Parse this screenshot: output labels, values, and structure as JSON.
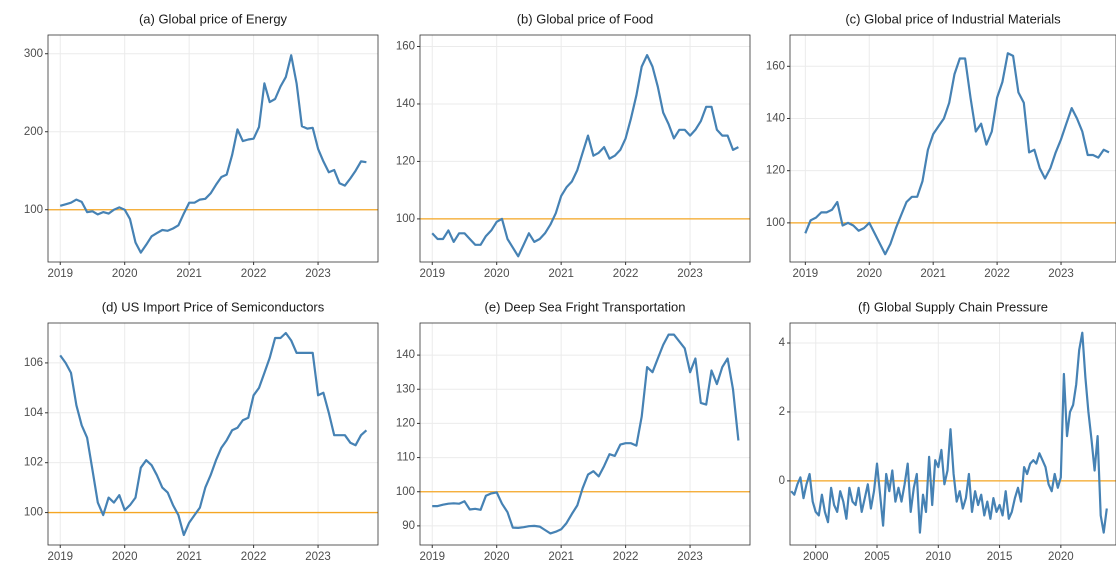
{
  "chart_data": [
    {
      "type": "line",
      "title": "(a) Global price of Energy",
      "x": [
        2019,
        2019.083,
        2019.167,
        2019.25,
        2019.333,
        2019.417,
        2019.5,
        2019.583,
        2019.667,
        2019.75,
        2019.833,
        2019.917,
        2020,
        2020.083,
        2020.167,
        2020.25,
        2020.333,
        2020.417,
        2020.5,
        2020.583,
        2020.667,
        2020.75,
        2020.833,
        2020.917,
        2021,
        2021.083,
        2021.167,
        2021.25,
        2021.333,
        2021.417,
        2021.5,
        2021.583,
        2021.667,
        2021.75,
        2021.833,
        2021.917,
        2022,
        2022.083,
        2022.167,
        2022.25,
        2022.333,
        2022.417,
        2022.5,
        2022.583,
        2022.667,
        2022.75,
        2022.833,
        2022.917,
        2023,
        2023.083,
        2023.167,
        2023.25,
        2023.333,
        2023.417,
        2023.5,
        2023.583,
        2023.667,
        2023.75
      ],
      "values": [
        105,
        107,
        109,
        113,
        110,
        97,
        98,
        94,
        97,
        95,
        100,
        103,
        100,
        88,
        58,
        45,
        55,
        66,
        70,
        74,
        73,
        76,
        80,
        95,
        109,
        109,
        113,
        114,
        121,
        132,
        142,
        145,
        170,
        203,
        188,
        190,
        191,
        206,
        262,
        238,
        242,
        258,
        270,
        298,
        262,
        207,
        204,
        205,
        178,
        162,
        148,
        151,
        134,
        131,
        140,
        150,
        162,
        161
      ],
      "color": "#4682b4",
      "hline": 100,
      "hline_color": "#f5a623",
      "xlim": [
        2018.81,
        2023.93
      ],
      "xticks": [
        2019,
        2020,
        2021,
        2022,
        2023
      ],
      "ylim": [
        33,
        324
      ],
      "yticks": [
        100,
        200,
        300
      ],
      "grid": true
    },
    {
      "type": "line",
      "title": "(b) Global price of Food",
      "x": [
        2019,
        2019.083,
        2019.167,
        2019.25,
        2019.333,
        2019.417,
        2019.5,
        2019.583,
        2019.667,
        2019.75,
        2019.833,
        2019.917,
        2020,
        2020.083,
        2020.167,
        2020.25,
        2020.333,
        2020.417,
        2020.5,
        2020.583,
        2020.667,
        2020.75,
        2020.833,
        2020.917,
        2021,
        2021.083,
        2021.167,
        2021.25,
        2021.333,
        2021.417,
        2021.5,
        2021.583,
        2021.667,
        2021.75,
        2021.833,
        2021.917,
        2022,
        2022.083,
        2022.167,
        2022.25,
        2022.333,
        2022.417,
        2022.5,
        2022.583,
        2022.667,
        2022.75,
        2022.833,
        2022.917,
        2023,
        2023.083,
        2023.167,
        2023.25,
        2023.333,
        2023.417,
        2023.5,
        2023.583,
        2023.667,
        2023.75
      ],
      "values": [
        95,
        93,
        93,
        96,
        92,
        95,
        95,
        93,
        91,
        91,
        94,
        96,
        99,
        100,
        93,
        90,
        87,
        91,
        95,
        92,
        93,
        95,
        98,
        102,
        108,
        111,
        113,
        117,
        123,
        129,
        122,
        123,
        125,
        121,
        122,
        124,
        128,
        135,
        143,
        153,
        157,
        153,
        146,
        137,
        133,
        128,
        131,
        131,
        129,
        131,
        134,
        139,
        139,
        131,
        129,
        129,
        124,
        125
      ],
      "color": "#4682b4",
      "hline": 100,
      "hline_color": "#f5a623",
      "xlim": [
        2018.81,
        2023.93
      ],
      "xticks": [
        2019,
        2020,
        2021,
        2022,
        2023
      ],
      "ylim": [
        85,
        164
      ],
      "yticks": [
        100,
        120,
        140,
        160
      ],
      "grid": true
    },
    {
      "type": "line",
      "title": "(c) Global price of Industrial Materials",
      "x": [
        2019,
        2019.083,
        2019.167,
        2019.25,
        2019.333,
        2019.417,
        2019.5,
        2019.583,
        2019.667,
        2019.75,
        2019.833,
        2019.917,
        2020,
        2020.083,
        2020.167,
        2020.25,
        2020.333,
        2020.417,
        2020.5,
        2020.583,
        2020.667,
        2020.75,
        2020.833,
        2020.917,
        2021,
        2021.083,
        2021.167,
        2021.25,
        2021.333,
        2021.417,
        2021.5,
        2021.583,
        2021.667,
        2021.75,
        2021.833,
        2021.917,
        2022,
        2022.083,
        2022.167,
        2022.25,
        2022.333,
        2022.417,
        2022.5,
        2022.583,
        2022.667,
        2022.75,
        2022.833,
        2022.917,
        2023,
        2023.083,
        2023.167,
        2023.25,
        2023.333,
        2023.417,
        2023.5,
        2023.583,
        2023.667,
        2023.75
      ],
      "values": [
        96,
        101,
        102,
        104,
        104,
        105,
        108,
        99,
        100,
        99,
        97,
        98,
        100,
        96,
        92,
        88,
        92,
        98,
        103,
        108,
        110,
        110,
        116,
        128,
        134,
        137,
        140,
        146,
        157,
        163,
        163,
        148,
        135,
        138,
        130,
        135,
        148,
        154,
        165,
        164,
        150,
        146,
        127,
        128,
        121,
        117,
        121,
        127,
        132,
        138,
        144,
        140,
        135,
        126,
        126,
        125,
        128,
        127
      ],
      "color": "#4682b4",
      "hline": 100,
      "hline_color": "#f5a623",
      "xlim": [
        2018.76,
        2023.86
      ],
      "xticks": [
        2019,
        2020,
        2021,
        2022,
        2023
      ],
      "ylim": [
        85,
        172
      ],
      "yticks": [
        100,
        120,
        140,
        160
      ],
      "grid": true
    },
    {
      "type": "line",
      "title": "(d) US Import Price of Semiconductors",
      "x": [
        2019,
        2019.083,
        2019.167,
        2019.25,
        2019.333,
        2019.417,
        2019.5,
        2019.583,
        2019.667,
        2019.75,
        2019.833,
        2019.917,
        2020,
        2020.083,
        2020.167,
        2020.25,
        2020.333,
        2020.417,
        2020.5,
        2020.583,
        2020.667,
        2020.75,
        2020.833,
        2020.917,
        2021,
        2021.083,
        2021.167,
        2021.25,
        2021.333,
        2021.417,
        2021.5,
        2021.583,
        2021.667,
        2021.75,
        2021.833,
        2021.917,
        2022,
        2022.083,
        2022.167,
        2022.25,
        2022.333,
        2022.417,
        2022.5,
        2022.583,
        2022.667,
        2022.75,
        2022.833,
        2022.917,
        2023,
        2023.083,
        2023.167,
        2023.25,
        2023.333,
        2023.417,
        2023.5,
        2023.583,
        2023.667,
        2023.75
      ],
      "values": [
        106.3,
        106.0,
        105.6,
        104.3,
        103.5,
        103.0,
        101.7,
        100.4,
        99.9,
        100.6,
        100.4,
        100.7,
        100.1,
        100.3,
        100.6,
        101.8,
        102.1,
        101.9,
        101.5,
        101.0,
        100.8,
        100.3,
        99.9,
        99.1,
        99.6,
        99.9,
        100.2,
        101.0,
        101.5,
        102.1,
        102.6,
        102.9,
        103.3,
        103.4,
        103.7,
        103.8,
        104.7,
        105.0,
        105.6,
        106.2,
        107.0,
        107.0,
        107.2,
        106.9,
        106.4,
        106.4,
        106.4,
        106.4,
        104.7,
        104.8,
        104.0,
        103.1,
        103.1,
        103.1,
        102.8,
        102.7,
        103.1,
        103.3
      ],
      "color": "#4682b4",
      "hline": 100,
      "hline_color": "#f5a623",
      "xlim": [
        2018.81,
        2023.93
      ],
      "xticks": [
        2019,
        2020,
        2021,
        2022,
        2023
      ],
      "ylim": [
        98.7,
        107.6
      ],
      "yticks": [
        100,
        102,
        104,
        106
      ],
      "grid": true
    },
    {
      "type": "line",
      "title": "(e) Deep Sea Fright Transportation",
      "x": [
        2019,
        2019.083,
        2019.167,
        2019.25,
        2019.333,
        2019.417,
        2019.5,
        2019.583,
        2019.667,
        2019.75,
        2019.833,
        2019.917,
        2020,
        2020.083,
        2020.167,
        2020.25,
        2020.333,
        2020.417,
        2020.5,
        2020.583,
        2020.667,
        2020.75,
        2020.833,
        2020.917,
        2021,
        2021.083,
        2021.167,
        2021.25,
        2021.333,
        2021.417,
        2021.5,
        2021.583,
        2021.667,
        2021.75,
        2021.833,
        2021.917,
        2022,
        2022.083,
        2022.167,
        2022.25,
        2022.333,
        2022.417,
        2022.5,
        2022.583,
        2022.667,
        2022.75,
        2022.833,
        2022.917,
        2023,
        2023.083,
        2023.167,
        2023.25,
        2023.333,
        2023.417,
        2023.5,
        2023.583,
        2023.667,
        2023.75
      ],
      "values": [
        95.8,
        95.8,
        96.2,
        96.5,
        96.6,
        96.5,
        97.2,
        94.8,
        95.0,
        94.7,
        98.8,
        99.5,
        99.8,
        96.5,
        94.0,
        89.5,
        89.4,
        89.6,
        89.9,
        90.0,
        89.8,
        88.8,
        87.8,
        88.3,
        89.0,
        90.8,
        93.5,
        96.0,
        101.0,
        105.0,
        106.0,
        104.5,
        107.5,
        111.0,
        110.5,
        113.8,
        114.2,
        114.2,
        113.5,
        122.0,
        136.5,
        135.0,
        139.0,
        143.0,
        146.0,
        146.0,
        144.0,
        142.0,
        135.0,
        139.0,
        126.0,
        125.5,
        135.5,
        131.5,
        136.5,
        139.0,
        130.0,
        115.0
      ],
      "color": "#4682b4",
      "hline": 100,
      "hline_color": "#f5a623",
      "xlim": [
        2018.81,
        2023.93
      ],
      "xticks": [
        2019,
        2020,
        2021,
        2022,
        2023
      ],
      "ylim": [
        84.4,
        149.4
      ],
      "yticks": [
        90,
        100,
        110,
        120,
        130,
        140
      ],
      "grid": true
    },
    {
      "type": "line",
      "title": "(f) Global Supply Chain Pressure",
      "x": [
        1998,
        1998.25,
        1998.5,
        1998.75,
        1999,
        1999.25,
        1999.5,
        1999.75,
        2000,
        2000.25,
        2000.5,
        2000.75,
        2001,
        2001.25,
        2001.5,
        2001.75,
        2002,
        2002.25,
        2002.5,
        2002.75,
        2003,
        2003.25,
        2003.5,
        2003.75,
        2004,
        2004.25,
        2004.5,
        2004.75,
        2005,
        2005.25,
        2005.5,
        2005.75,
        2006,
        2006.25,
        2006.5,
        2006.75,
        2007,
        2007.25,
        2007.5,
        2007.75,
        2008,
        2008.25,
        2008.5,
        2008.75,
        2009,
        2009.25,
        2009.5,
        2009.75,
        2010,
        2010.25,
        2010.5,
        2010.75,
        2011,
        2011.25,
        2011.5,
        2011.75,
        2012,
        2012.25,
        2012.5,
        2012.75,
        2013,
        2013.25,
        2013.5,
        2013.75,
        2014,
        2014.25,
        2014.5,
        2014.75,
        2015,
        2015.25,
        2015.5,
        2015.75,
        2016,
        2016.25,
        2016.5,
        2016.75,
        2017,
        2017.25,
        2017.5,
        2017.75,
        2018,
        2018.25,
        2018.5,
        2018.75,
        2019,
        2019.25,
        2019.5,
        2019.75,
        2020,
        2020.25,
        2020.5,
        2020.75,
        2021,
        2021.25,
        2021.5,
        2021.75,
        2022,
        2022.25,
        2022.5,
        2022.75,
        2023,
        2023.25,
        2023.5,
        2023.75
      ],
      "values": [
        -0.3,
        -0.4,
        -0.1,
        0.1,
        -0.5,
        -0.1,
        0.2,
        -0.6,
        -0.9,
        -1.0,
        -0.4,
        -0.9,
        -1.2,
        -0.2,
        -0.7,
        -0.9,
        -0.3,
        -0.6,
        -1.1,
        -0.2,
        -0.6,
        -0.7,
        -0.2,
        -0.9,
        -0.5,
        -0.1,
        -0.8,
        -0.3,
        0.5,
        -0.4,
        -1.3,
        0.2,
        -0.3,
        0.3,
        -0.6,
        -0.2,
        -0.6,
        -0.1,
        0.5,
        -0.9,
        -0.2,
        0.2,
        -1.5,
        -0.4,
        -0.9,
        0.7,
        -0.7,
        0.6,
        0.4,
        0.9,
        -0.1,
        0.3,
        1.5,
        0.2,
        -0.6,
        -0.3,
        -0.8,
        -0.5,
        0.2,
        -0.9,
        -0.3,
        -0.7,
        -0.4,
        -1.0,
        -0.6,
        -1.1,
        -0.5,
        -0.9,
        -0.7,
        -1.0,
        -0.3,
        -1.1,
        -0.9,
        -0.5,
        -0.2,
        -0.6,
        0.4,
        0.2,
        0.5,
        0.6,
        0.5,
        0.8,
        0.6,
        0.4,
        -0.1,
        -0.3,
        0.2,
        -0.2,
        0.1,
        3.1,
        1.3,
        2.0,
        2.2,
        2.8,
        3.8,
        4.3,
        3.0,
        2.0,
        1.2,
        0.3,
        1.3,
        -1.0,
        -1.5,
        -0.8
      ],
      "color": "#4682b4",
      "hline": 0,
      "hline_color": "#f5a623",
      "xlim": [
        1997.9,
        2024.5
      ],
      "xticks": [
        2000,
        2005,
        2010,
        2015,
        2020
      ],
      "ylim": [
        -1.86,
        4.58
      ],
      "yticks": [
        0,
        2,
        4
      ],
      "grid": true
    }
  ]
}
